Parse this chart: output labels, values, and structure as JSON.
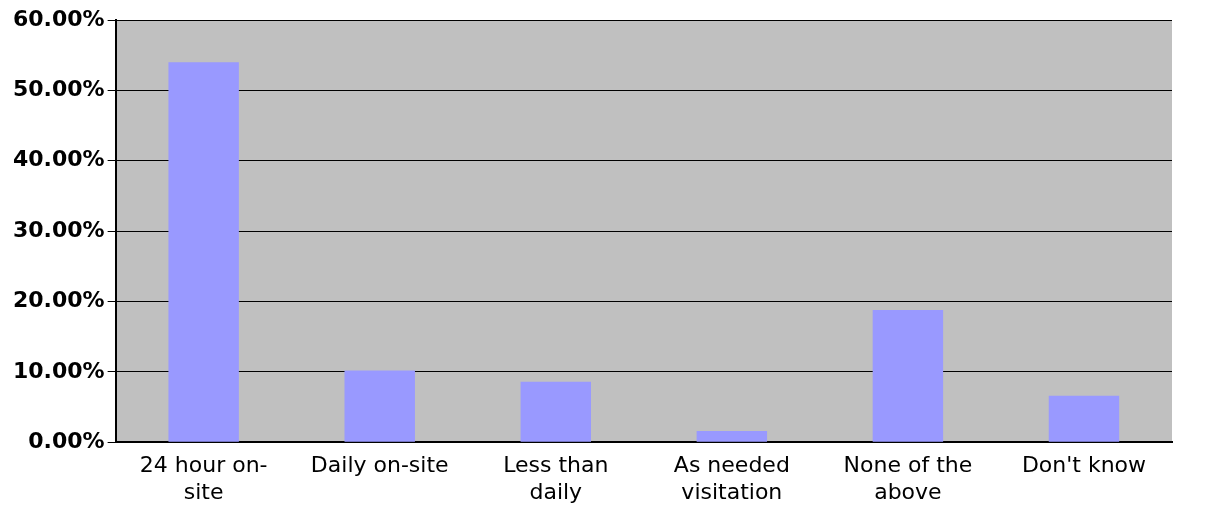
{
  "chart_data": {
    "type": "bar",
    "categories": [
      "24 hour on-site",
      "Daily on-site",
      "Less than daily",
      "As needed visitation",
      "None of the above",
      "Don't know"
    ],
    "values": [
      54,
      10.2,
      8.6,
      1.6,
      18.8,
      6.6
    ],
    "color": "#9999ff",
    "ylim": [
      0,
      60
    ],
    "yticks": [
      {
        "value": 0,
        "label": "0.00%"
      },
      {
        "value": 10,
        "label": "10.00%"
      },
      {
        "value": 20,
        "label": "20.00%"
      },
      {
        "value": 30,
        "label": "30.00%"
      },
      {
        "value": 40,
        "label": "40.00%"
      },
      {
        "value": 50,
        "label": "50.00%"
      },
      {
        "value": 60,
        "label": "60.00%"
      }
    ],
    "grid": "y",
    "legend": false
  }
}
